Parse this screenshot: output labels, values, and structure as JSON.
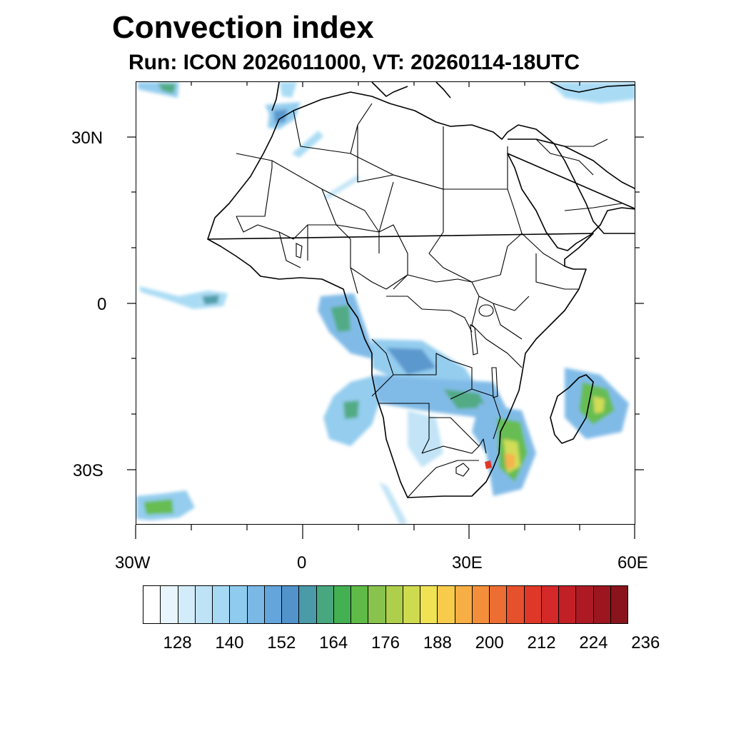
{
  "title": "Convection index",
  "subtitle": "Run: ICON 2026011000,  VT: 20260114-18UTC",
  "map": {
    "projection": "cylindrical-equidistant",
    "lon_range": [
      -30,
      60
    ],
    "lat_range": [
      -40,
      40
    ],
    "lat_labels": [
      "30N",
      "0",
      "30S"
    ],
    "lon_labels": [
      "30W",
      "0",
      "30E",
      "60E"
    ],
    "features": [
      "coastlines",
      "country-borders",
      "convection-index-shading"
    ]
  },
  "colorbar": {
    "labels": [
      "128",
      "140",
      "152",
      "164",
      "176",
      "188",
      "200",
      "212",
      "224",
      "236"
    ],
    "colors": [
      "#ffffff",
      "#e8f5fc",
      "#d2ecf9",
      "#bfe3f6",
      "#a6daf4",
      "#8fcbee",
      "#7ab8e6",
      "#64a5dc",
      "#5293cc",
      "#4a9aa8",
      "#48a77e",
      "#43b052",
      "#5fba48",
      "#88c34d",
      "#aecf4c",
      "#cfdb4f",
      "#efe354",
      "#f8cb4c",
      "#f6ae45",
      "#f38f3b",
      "#ed6e33",
      "#e6502c",
      "#df3828",
      "#d52828",
      "#c21f27",
      "#ad1a24",
      "#9c1620",
      "#8a141c"
    ]
  }
}
